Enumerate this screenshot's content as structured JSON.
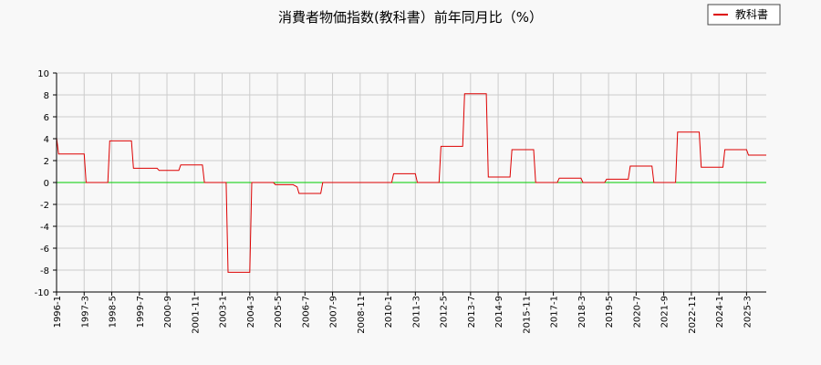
{
  "chart_data": {
    "type": "line",
    "title": "消費者物価指数(教科書）前年同月比（%）",
    "xlabel": "",
    "ylabel": "",
    "ylim": [
      -10,
      10
    ],
    "yticks": [
      10,
      8,
      6,
      4,
      2,
      0,
      -2,
      -4,
      -6,
      -8,
      -10
    ],
    "xticks": [
      "1996-1",
      "1997-3",
      "1998-5",
      "1999-7",
      "2000-9",
      "2001-11",
      "2003-1",
      "2004-3",
      "2005-5",
      "2006-7",
      "2007-9",
      "2008-11",
      "2010-1",
      "2011-3",
      "2012-5",
      "2013-7",
      "2014-9",
      "2015-11",
      "2017-1",
      "2018-3",
      "2019-5",
      "2020-7",
      "2021-9",
      "2022-11",
      "2024-1",
      "2025-3"
    ],
    "grid": true,
    "legend_position": "top-right",
    "colors": {
      "series": "#dd0000",
      "zero_line": "#00cc00",
      "grid": "#cccccc"
    },
    "series": [
      {
        "name": "教科書",
        "points": [
          [
            "1996-1",
            4.1
          ],
          [
            "1996-2",
            2.6
          ],
          [
            "1997-3",
            2.6
          ],
          [
            "1997-4",
            0.0
          ],
          [
            "1998-3",
            0.0
          ],
          [
            "1998-4",
            3.8
          ],
          [
            "1999-3",
            3.8
          ],
          [
            "1999-4",
            1.3
          ],
          [
            "2000-4",
            1.3
          ],
          [
            "2000-5",
            1.1
          ],
          [
            "2001-3",
            1.1
          ],
          [
            "2001-4",
            1.6
          ],
          [
            "2002-3",
            1.6
          ],
          [
            "2002-4",
            0.0
          ],
          [
            "2003-3",
            0.0
          ],
          [
            "2003-4",
            -8.2
          ],
          [
            "2004-3",
            -8.2
          ],
          [
            "2004-4",
            0.0
          ],
          [
            "2005-3",
            0.0
          ],
          [
            "2005-4",
            -0.2
          ],
          [
            "2006-1",
            -0.2
          ],
          [
            "2006-3",
            -0.4
          ],
          [
            "2006-4",
            -1.0
          ],
          [
            "2007-3",
            -1.0
          ],
          [
            "2007-4",
            0.0
          ],
          [
            "2010-3",
            0.0
          ],
          [
            "2010-4",
            0.8
          ],
          [
            "2011-3",
            0.8
          ],
          [
            "2011-4",
            0.0
          ],
          [
            "2012-3",
            0.0
          ],
          [
            "2012-4",
            3.3
          ],
          [
            "2013-3",
            3.3
          ],
          [
            "2013-4",
            8.1
          ],
          [
            "2014-3",
            8.1
          ],
          [
            "2014-4",
            0.5
          ],
          [
            "2015-3",
            0.5
          ],
          [
            "2015-4",
            3.0
          ],
          [
            "2016-3",
            3.0
          ],
          [
            "2016-4",
            0.0
          ],
          [
            "2017-3",
            0.0
          ],
          [
            "2017-4",
            0.4
          ],
          [
            "2018-3",
            0.4
          ],
          [
            "2018-4",
            0.0
          ],
          [
            "2019-3",
            0.0
          ],
          [
            "2019-4",
            0.3
          ],
          [
            "2020-3",
            0.3
          ],
          [
            "2020-4",
            1.5
          ],
          [
            "2021-3",
            1.5
          ],
          [
            "2021-4",
            0.0
          ],
          [
            "2022-3",
            0.0
          ],
          [
            "2022-4",
            4.6
          ],
          [
            "2023-3",
            4.6
          ],
          [
            "2023-4",
            1.4
          ],
          [
            "2024-3",
            1.4
          ],
          [
            "2024-4",
            3.0
          ],
          [
            "2025-3",
            3.0
          ],
          [
            "2025-4",
            2.5
          ],
          [
            "2026-1",
            2.5
          ]
        ]
      }
    ]
  }
}
